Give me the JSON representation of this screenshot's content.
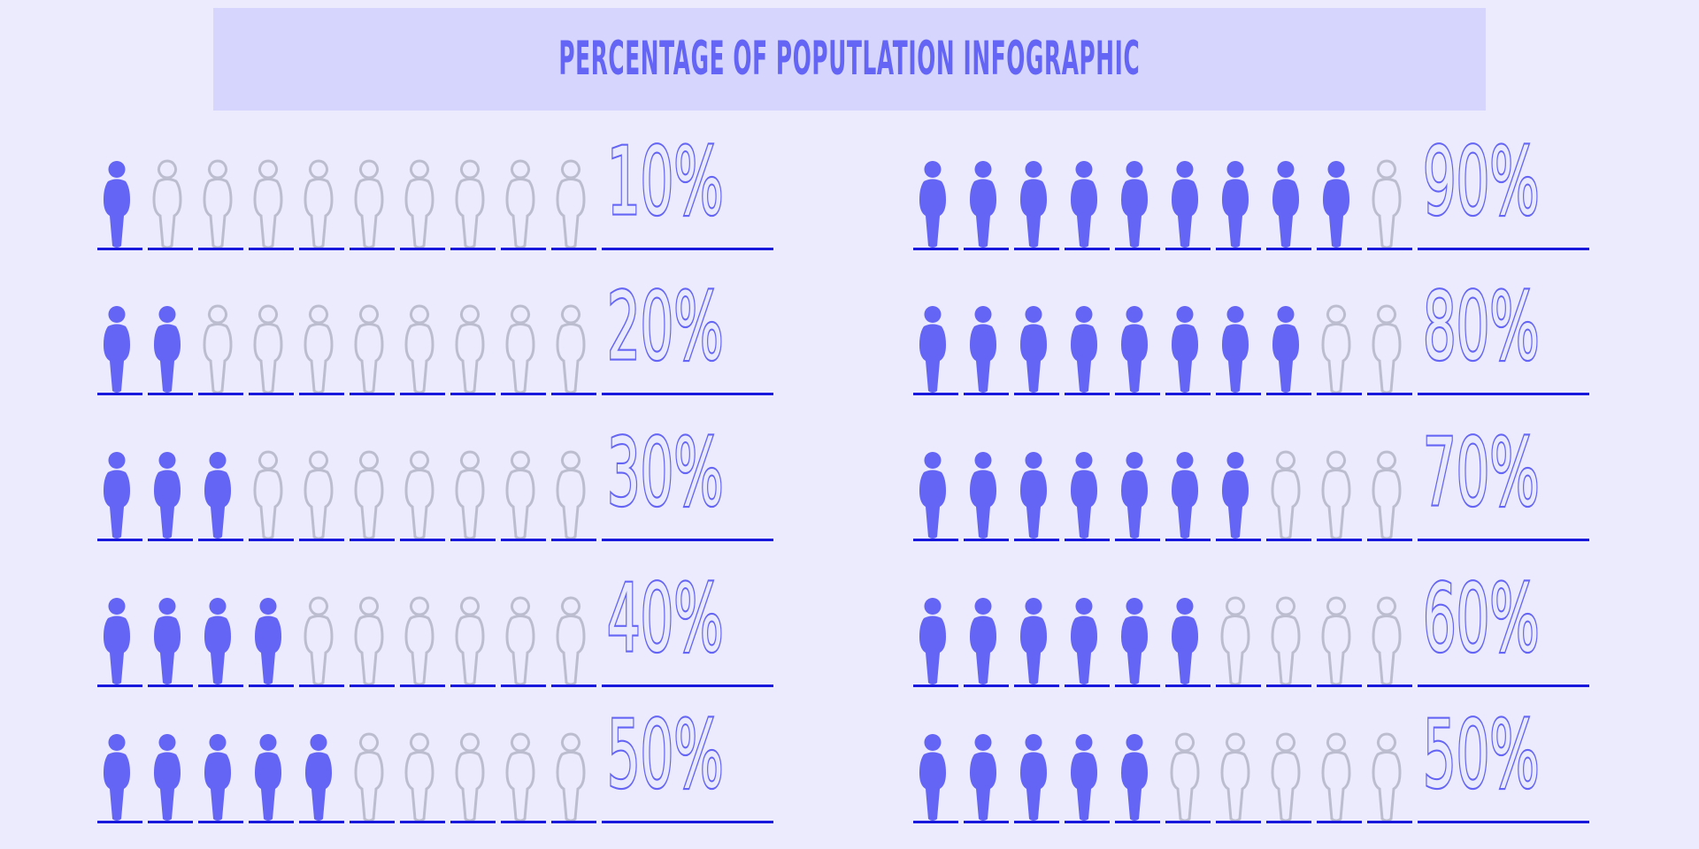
{
  "title": "PERCENTAGE OF POPUTLATION INFOGRAPHIC",
  "colors": {
    "filled": "#6464f5",
    "empty": "#bdbdd0",
    "line": "#1818dc",
    "background": "#ebebfd",
    "title_box": "#d5d5fd"
  },
  "people_per_row": 10,
  "icon": "person-icon",
  "rows": [
    {
      "label": "10%",
      "value": 10
    },
    {
      "label": "20%",
      "value": 20
    },
    {
      "label": "30%",
      "value": 30
    },
    {
      "label": "40%",
      "value": 40
    },
    {
      "label": "50%",
      "value": 50
    },
    {
      "label": "90%",
      "value": 90
    },
    {
      "label": "80%",
      "value": 80
    },
    {
      "label": "70%",
      "value": 70
    },
    {
      "label": "60%",
      "value": 60
    },
    {
      "label": "50%",
      "value": 50
    }
  ]
}
